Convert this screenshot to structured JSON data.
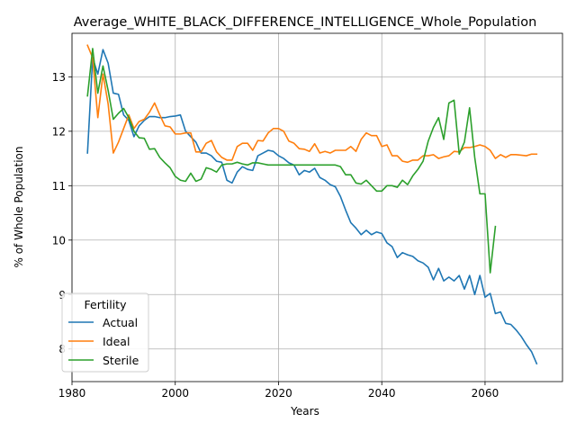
{
  "chart_data": {
    "type": "line",
    "title": "Average_WHITE_BLACK_DIFFERENCE_INTELLIGENCE_Whole_Population",
    "xlabel": "Years",
    "ylabel": "% of Whole Population",
    "xlim": [
      1980,
      2075
    ],
    "ylim": [
      7.4,
      13.8
    ],
    "xticks": [
      1980,
      2000,
      2020,
      2040,
      2060
    ],
    "yticks": [
      8,
      9,
      10,
      11,
      12,
      13
    ],
    "grid": true,
    "legend": {
      "title": "Fertility",
      "placement": "lower-left"
    },
    "series": [
      {
        "name": "Actual",
        "color": "#1f77b4",
        "x": [
          1983,
          1984,
          1985,
          1986,
          1987,
          1988,
          1989,
          1990,
          1991,
          1992,
          1993,
          1994,
          1995,
          1996,
          1997,
          1998,
          1999,
          2000,
          2001,
          2002,
          2003,
          2004,
          2005,
          2006,
          2007,
          2008,
          2009,
          2010,
          2011,
          2012,
          2013,
          2014,
          2015,
          2016,
          2017,
          2018,
          2019,
          2020,
          2021,
          2022,
          2023,
          2024,
          2025,
          2026,
          2027,
          2028,
          2029,
          2030,
          2031,
          2032,
          2033,
          2034,
          2035,
          2036,
          2037,
          2038,
          2039,
          2040,
          2041,
          2042,
          2043,
          2044,
          2045,
          2046,
          2047,
          2048,
          2049,
          2050,
          2051,
          2052,
          2053,
          2054,
          2055,
          2056,
          2057,
          2058,
          2059,
          2060,
          2061,
          2062,
          2063,
          2064,
          2065,
          2066,
          2067,
          2068,
          2069,
          2070
        ],
        "y": [
          11.6,
          13.35,
          13.05,
          13.5,
          13.25,
          12.7,
          12.68,
          12.3,
          12.2,
          11.9,
          12.1,
          12.2,
          12.27,
          12.27,
          12.25,
          12.25,
          12.27,
          12.28,
          12.3,
          12.0,
          11.9,
          11.8,
          11.6,
          11.6,
          11.55,
          11.45,
          11.43,
          11.1,
          11.05,
          11.25,
          11.35,
          11.3,
          11.28,
          11.55,
          11.6,
          11.65,
          11.63,
          11.55,
          11.5,
          11.42,
          11.38,
          11.2,
          11.28,
          11.25,
          11.32,
          11.15,
          11.1,
          11.02,
          10.98,
          10.8,
          10.55,
          10.32,
          10.22,
          10.1,
          10.18,
          10.1,
          10.15,
          10.12,
          9.95,
          9.88,
          9.68,
          9.77,
          9.73,
          9.7,
          9.62,
          9.58,
          9.5,
          9.27,
          9.48,
          9.25,
          9.32,
          9.25,
          9.35,
          9.1,
          9.35,
          9.0,
          9.35,
          8.95,
          9.02,
          8.65,
          8.68,
          8.47,
          8.45,
          8.35,
          8.23,
          8.08,
          7.95,
          7.73
        ]
      },
      {
        "name": "Ideal",
        "color": "#ff7f0e",
        "x": [
          1983,
          1984,
          1985,
          1986,
          1987,
          1988,
          1989,
          1990,
          1991,
          1992,
          1993,
          1994,
          1995,
          1996,
          1997,
          1998,
          1999,
          2000,
          2001,
          2002,
          2003,
          2004,
          2005,
          2006,
          2007,
          2008,
          2009,
          2010,
          2011,
          2012,
          2013,
          2014,
          2015,
          2016,
          2017,
          2018,
          2019,
          2020,
          2021,
          2022,
          2023,
          2024,
          2025,
          2026,
          2027,
          2028,
          2029,
          2030,
          2031,
          2032,
          2033,
          2034,
          2035,
          2036,
          2037,
          2038,
          2039,
          2040,
          2041,
          2042,
          2043,
          2044,
          2045,
          2046,
          2047,
          2048,
          2049,
          2050,
          2051,
          2052,
          2053,
          2054,
          2055,
          2056,
          2057,
          2058,
          2059,
          2060,
          2061,
          2062,
          2063,
          2064,
          2065,
          2066,
          2067,
          2068,
          2069,
          2070
        ],
        "y": [
          13.58,
          13.35,
          12.25,
          13.05,
          12.5,
          11.6,
          11.8,
          12.05,
          12.3,
          12.05,
          12.18,
          12.22,
          12.35,
          12.52,
          12.3,
          12.1,
          12.08,
          11.95,
          11.95,
          11.97,
          11.97,
          11.62,
          11.62,
          11.78,
          11.83,
          11.62,
          11.52,
          11.47,
          11.47,
          11.72,
          11.78,
          11.78,
          11.65,
          11.83,
          11.82,
          11.97,
          12.05,
          12.05,
          12.0,
          11.82,
          11.78,
          11.68,
          11.67,
          11.63,
          11.77,
          11.6,
          11.63,
          11.6,
          11.65,
          11.65,
          11.65,
          11.72,
          11.63,
          11.85,
          11.97,
          11.92,
          11.92,
          11.72,
          11.75,
          11.55,
          11.55,
          11.45,
          11.43,
          11.47,
          11.47,
          11.55,
          11.55,
          11.57,
          11.5,
          11.53,
          11.55,
          11.63,
          11.62,
          11.7,
          11.7,
          11.72,
          11.75,
          11.72,
          11.65,
          11.5,
          11.57,
          11.52,
          11.57,
          11.57,
          11.56,
          11.55,
          11.58,
          11.58
        ]
      },
      {
        "name": "Sterile",
        "color": "#2ca02c",
        "x": [
          1983,
          1984,
          1985,
          1986,
          1987,
          1988,
          1989,
          1990,
          1991,
          1992,
          1993,
          1994,
          1995,
          1996,
          1997,
          1998,
          1999,
          2000,
          2001,
          2002,
          2003,
          2004,
          2005,
          2006,
          2007,
          2008,
          2009,
          2010,
          2011,
          2012,
          2013,
          2014,
          2015,
          2016,
          2017,
          2018,
          2019,
          2020,
          2021,
          2022,
          2023,
          2024,
          2025,
          2026,
          2027,
          2028,
          2029,
          2030,
          2031,
          2032,
          2033,
          2034,
          2035,
          2036,
          2037,
          2038,
          2039,
          2040,
          2041,
          2042,
          2043,
          2044,
          2045,
          2046,
          2047,
          2048,
          2049,
          2050,
          2051,
          2052,
          2053,
          2054,
          2055,
          2056,
          2057,
          2058,
          2059,
          2060,
          2061,
          2062
        ],
        "y": [
          12.65,
          13.52,
          12.7,
          13.2,
          12.75,
          12.22,
          12.33,
          12.42,
          12.25,
          12.0,
          11.88,
          11.87,
          11.67,
          11.68,
          11.52,
          11.42,
          11.33,
          11.17,
          11.1,
          11.08,
          11.23,
          11.08,
          11.12,
          11.33,
          11.3,
          11.25,
          11.38,
          11.4,
          11.4,
          11.43,
          11.4,
          11.38,
          11.42,
          11.42,
          11.4,
          11.38,
          11.38,
          11.38,
          11.38,
          11.38,
          11.38,
          11.38,
          11.38,
          11.38,
          11.38,
          11.38,
          11.38,
          11.38,
          11.38,
          11.35,
          11.2,
          11.2,
          11.05,
          11.03,
          11.1,
          11.0,
          10.9,
          10.9,
          11.0,
          11.0,
          10.97,
          11.1,
          11.02,
          11.18,
          11.3,
          11.45,
          11.82,
          12.07,
          12.25,
          11.85,
          12.52,
          12.57,
          11.58,
          11.8,
          12.43,
          11.52,
          10.85,
          10.85,
          9.4,
          10.25
        ]
      }
    ]
  }
}
